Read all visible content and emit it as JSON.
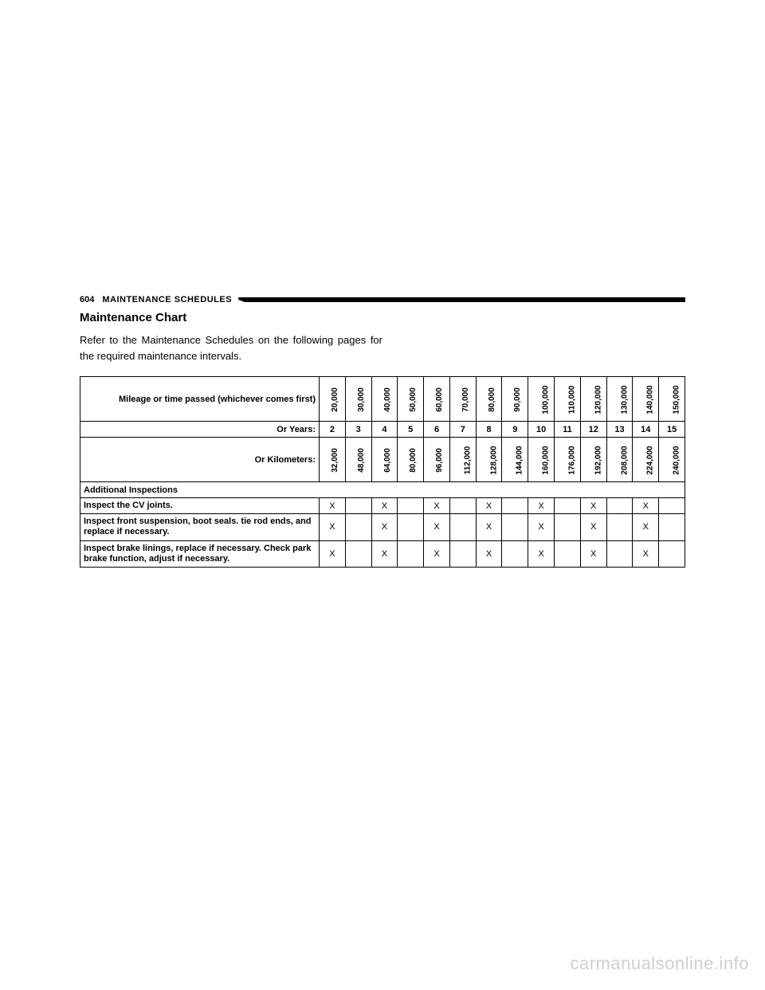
{
  "header": {
    "page_number": "604",
    "section": "MAINTENANCE SCHEDULES"
  },
  "title": "Maintenance Chart",
  "intro": "Refer to the Maintenance Schedules on the following pages for the required maintenance intervals.",
  "table": {
    "row1_label": "Mileage or time passed (whichever comes first)",
    "mileage": [
      "20,000",
      "30,000",
      "40,000",
      "50,000",
      "60,000",
      "70,000",
      "80,000",
      "90,000",
      "100,000",
      "110,000",
      "120,000",
      "130,000",
      "140,000",
      "150,000"
    ],
    "row2_label": "Or Years:",
    "years": [
      "2",
      "3",
      "4",
      "5",
      "6",
      "7",
      "8",
      "9",
      "10",
      "11",
      "12",
      "13",
      "14",
      "15"
    ],
    "row3_label": "Or Kilometers:",
    "km": [
      "32,000",
      "48,000",
      "64,000",
      "80,000",
      "96,000",
      "112,000",
      "128,000",
      "144,000",
      "160,000",
      "176,000",
      "192,000",
      "208,000",
      "224,000",
      "240,000"
    ],
    "section_header": "Additional Inspections",
    "items": [
      {
        "label": "Inspect the CV joints.",
        "marks": [
          "X",
          "",
          "X",
          "",
          "X",
          "",
          "X",
          "",
          "X",
          "",
          "X",
          "",
          "X",
          ""
        ]
      },
      {
        "label": "Inspect front suspension, boot seals. tie rod ends, and replace if necessary.",
        "marks": [
          "X",
          "",
          "X",
          "",
          "X",
          "",
          "X",
          "",
          "X",
          "",
          "X",
          "",
          "X",
          ""
        ]
      },
      {
        "label": "Inspect brake linings, replace if necessary. Check park brake function, adjust if necessary.",
        "marks": [
          "X",
          "",
          "X",
          "",
          "X",
          "",
          "X",
          "",
          "X",
          "",
          "X",
          "",
          "X",
          ""
        ]
      }
    ]
  },
  "watermark": "carmanualsonline.info",
  "colors": {
    "text": "#000000",
    "border": "#000000",
    "background": "#ffffff",
    "watermark": "#d0d0d0"
  }
}
